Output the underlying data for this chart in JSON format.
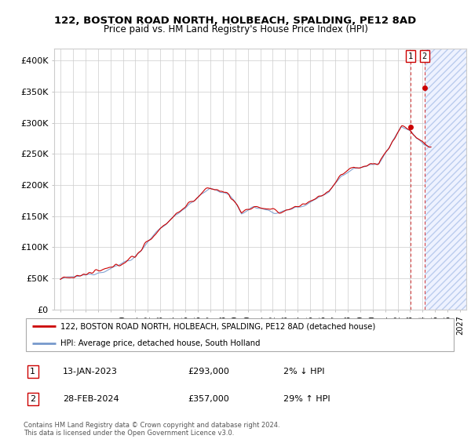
{
  "title": "122, BOSTON ROAD NORTH, HOLBEACH, SPALDING, PE12 8AD",
  "subtitle": "Price paid vs. HM Land Registry's House Price Index (HPI)",
  "legend_line1": "122, BOSTON ROAD NORTH, HOLBEACH, SPALDING, PE12 8AD (detached house)",
  "legend_line2": "HPI: Average price, detached house, South Holland",
  "transaction1_date": "13-JAN-2023",
  "transaction1_price": "£293,000",
  "transaction1_hpi": "2% ↓ HPI",
  "transaction2_date": "28-FEB-2024",
  "transaction2_price": "£357,000",
  "transaction2_hpi": "29% ↑ HPI",
  "footer": "Contains HM Land Registry data © Crown copyright and database right 2024.\nThis data is licensed under the Open Government Licence v3.0.",
  "hpi_color": "#7799cc",
  "price_color": "#cc0000",
  "ylim": [
    0,
    420000
  ],
  "yticks": [
    0,
    50000,
    100000,
    150000,
    200000,
    250000,
    300000,
    350000,
    400000
  ],
  "t1_x": 2023.04,
  "t1_y": 293000,
  "t2_x": 2024.16,
  "t2_y": 357000,
  "xmin": 1994.5,
  "xmax": 2027.5
}
